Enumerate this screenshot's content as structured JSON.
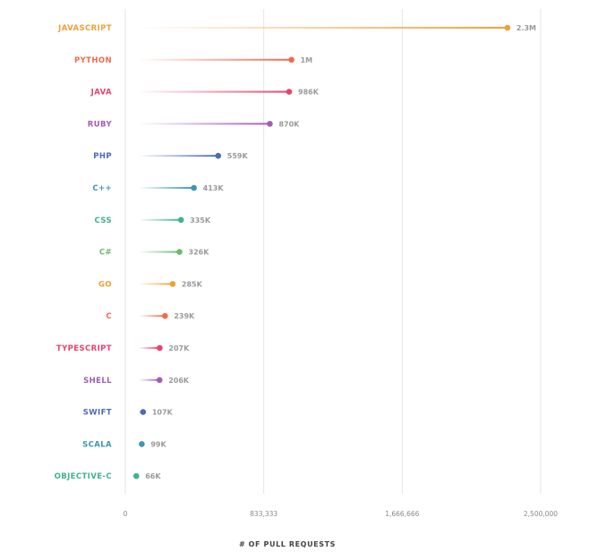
{
  "chart_data": {
    "type": "lollipop",
    "xlabel": "# OF PULL REQUESTS",
    "xlim": [
      0,
      2500000
    ],
    "xticks": [
      0,
      833333,
      1666666,
      2500000
    ],
    "xtick_labels": [
      "0",
      "833,333",
      "1,666,666",
      "2,500,000"
    ],
    "grid": true,
    "categories": [
      "JAVASCRIPT",
      "PYTHON",
      "JAVA",
      "RUBY",
      "PHP",
      "C++",
      "CSS",
      "C#",
      "GO",
      "C",
      "TYPESCRIPT",
      "SHELL",
      "SWIFT",
      "SCALA",
      "OBJECTIVE-C"
    ],
    "values": [
      2300000,
      1000000,
      986000,
      870000,
      559000,
      413000,
      335000,
      326000,
      285000,
      239000,
      207000,
      206000,
      107000,
      99000,
      66000
    ],
    "value_labels": [
      "2.3M",
      "1M",
      "986K",
      "870K",
      "559K",
      "413K",
      "335K",
      "326K",
      "285K",
      "239K",
      "207K",
      "206K",
      "107K",
      "99K",
      "66K"
    ],
    "colors": [
      "#f0a03a",
      "#ef6a4e",
      "#e5446d",
      "#a25cb7",
      "#4d6cb7",
      "#3e95b5",
      "#3fb28f",
      "#6cb96f",
      "#f0a03a",
      "#ef6a4e",
      "#e5446d",
      "#a25cb7",
      "#4d6cb7",
      "#3e95b5",
      "#3fb28f"
    ]
  }
}
